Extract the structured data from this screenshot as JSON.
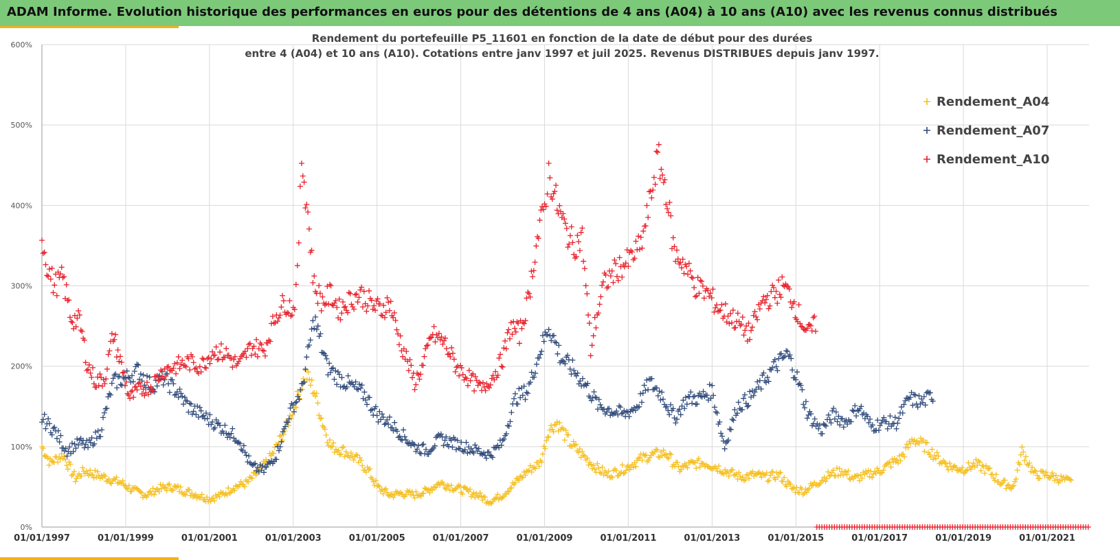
{
  "banner": {
    "title": "ADAM Informe. Evolution historique des performances en euros pour des détentions de 4 ans (A04) à 10 ans (A10) avec les revenus connus distribués"
  },
  "colors": {
    "banner_bg": "#7dc97a",
    "accent": "#f2b21b",
    "A04": "#f5bf1f",
    "A07": "#2f4a7a",
    "A10": "#e8202a",
    "grid": "#d9d9d9"
  },
  "chart_data": {
    "type": "scatter",
    "marker": "plus",
    "title_lines": [
      "Rendement du portefeuille P5_11601 en fonction de la date de début pour des durées",
      "entre 4 (A04) et 10 ans (A10). Cotations entre janv 1997 et juil 2025. Revenus DISTRIBUES depuis janv 1997."
    ],
    "x_range": [
      1997.0,
      2022.0
    ],
    "ylim": [
      0,
      600
    ],
    "y_ticks": [
      "0%",
      "100%",
      "200%",
      "300%",
      "400%",
      "500%",
      "600%"
    ],
    "x_ticks": [
      "01/01/1997",
      "01/01/1999",
      "01/01/2001",
      "01/01/2003",
      "01/01/2005",
      "01/01/2007",
      "01/01/2009",
      "01/01/2011",
      "01/01/2013",
      "01/01/2015",
      "01/01/2017",
      "01/01/2019",
      "01/01/2021"
    ],
    "grid": true,
    "legend_position": "top-right",
    "series": [
      {
        "name": "Rendement_A04",
        "color": "#f5bf1f",
        "x": [
          1997.0,
          1997.2,
          1997.5,
          1997.8,
          1998.0,
          1998.3,
          1998.6,
          1998.9,
          1999.2,
          1999.5,
          1999.8,
          2000.1,
          2000.4,
          2000.7,
          2001.0,
          2001.3,
          2001.6,
          2001.9,
          2002.2,
          2002.5,
          2002.8,
          2003.1,
          2003.3,
          2003.5,
          2003.7,
          2003.9,
          2004.2,
          2004.5,
          2004.8,
          2005.0,
          2005.3,
          2005.6,
          2005.9,
          2006.2,
          2006.5,
          2006.8,
          2007.1,
          2007.4,
          2007.7,
          2008.0,
          2008.3,
          2008.6,
          2008.9,
          2009.1,
          2009.3,
          2009.6,
          2009.9,
          2010.2,
          2010.5,
          2010.8,
          2011.0,
          2011.3,
          2011.6,
          2011.9,
          2012.2,
          2012.5,
          2012.8,
          2013.1,
          2013.4,
          2013.7,
          2014.0,
          2014.3,
          2014.6,
          2014.9,
          2015.2,
          2015.5,
          2015.8,
          2016.1,
          2016.4,
          2016.7,
          2017.0,
          2017.3,
          2017.5,
          2017.8,
          2018.1,
          2018.4,
          2018.7,
          2019.0,
          2019.3,
          2019.6,
          2019.9,
          2020.2,
          2020.4,
          2020.7,
          2021.0,
          2021.3,
          2021.6
        ],
        "y": [
          100,
          80,
          90,
          60,
          70,
          65,
          60,
          55,
          45,
          40,
          48,
          50,
          45,
          40,
          35,
          40,
          50,
          55,
          70,
          90,
          120,
          160,
          190,
          170,
          130,
          100,
          95,
          85,
          70,
          50,
          40,
          42,
          40,
          45,
          55,
          50,
          45,
          40,
          32,
          40,
          55,
          70,
          80,
          120,
          130,
          105,
          90,
          75,
          65,
          70,
          75,
          85,
          90,
          92,
          72,
          78,
          80,
          75,
          68,
          62,
          65,
          62,
          65,
          48,
          45,
          55,
          65,
          70,
          60,
          65,
          70,
          80,
          85,
          110,
          100,
          85,
          75,
          72,
          78,
          70,
          55,
          50,
          95,
          65,
          65,
          60,
          55
        ]
      },
      {
        "name": "Rendement_A07",
        "color": "#2f4a7a",
        "x": [
          1997.0,
          1997.3,
          1997.6,
          1997.9,
          1998.1,
          1998.4,
          1998.7,
          1999.0,
          1999.3,
          1999.6,
          1999.9,
          2000.2,
          2000.5,
          2000.8,
          2001.1,
          2001.4,
          2001.7,
          2002.0,
          2002.3,
          2002.6,
          2002.9,
          2003.2,
          2003.5,
          2003.8,
          2004.1,
          2004.4,
          2004.7,
          2005.0,
          2005.3,
          2005.6,
          2005.9,
          2006.2,
          2006.5,
          2006.8,
          2007.1,
          2007.4,
          2007.7,
          2008.0,
          2008.3,
          2008.6,
          2008.9,
          2009.1,
          2009.4,
          2009.7,
          2010.0,
          2010.3,
          2010.6,
          2010.9,
          2011.2,
          2011.5,
          2011.8,
          2012.1,
          2012.4,
          2012.7,
          2013.0,
          2013.3,
          2013.6,
          2013.9,
          2014.2,
          2014.5,
          2014.8,
          2015.0,
          2015.3,
          2015.6,
          2015.9,
          2016.2,
          2016.5,
          2016.8,
          2017.1,
          2017.4,
          2017.7,
          2018.0,
          2018.3
        ],
        "y": [
          135,
          120,
          95,
          105,
          100,
          120,
          180,
          185,
          195,
          175,
          185,
          170,
          150,
          140,
          130,
          120,
          110,
          75,
          70,
          90,
          140,
          170,
          260,
          200,
          185,
          175,
          165,
          140,
          130,
          115,
          100,
          95,
          110,
          105,
          100,
          95,
          90,
          105,
          160,
          170,
          220,
          250,
          210,
          195,
          175,
          150,
          145,
          140,
          150,
          180,
          165,
          135,
          160,
          160,
          170,
          100,
          150,
          160,
          180,
          200,
          215,
          190,
          140,
          120,
          140,
          130,
          150,
          125,
          130,
          130,
          160,
          155,
          165
        ]
      },
      {
        "name": "Rendement_A10",
        "color": "#e8202a",
        "x": [
          1997.0,
          1997.15,
          1997.3,
          1997.5,
          1997.7,
          1997.9,
          1998.1,
          1998.3,
          1998.5,
          1998.7,
          1998.9,
          1999.1,
          1999.3,
          1999.6,
          1999.9,
          2000.2,
          2000.5,
          2000.8,
          2001.1,
          2001.4,
          2001.7,
          2002.0,
          2002.3,
          2002.6,
          2002.8,
          2003.0,
          2003.1,
          2003.2,
          2003.35,
          2003.5,
          2003.7,
          2003.9,
          2004.1,
          2004.3,
          2004.6,
          2004.9,
          2005.1,
          2005.3,
          2005.5,
          2005.7,
          2005.9,
          2006.1,
          2006.3,
          2006.6,
          2006.9,
          2007.2,
          2007.5,
          2007.8,
          2008.0,
          2008.2,
          2008.4,
          2008.6,
          2008.8,
          2009.0,
          2009.1,
          2009.3,
          2009.5,
          2009.7,
          2009.9,
          2010.1,
          2010.2,
          2010.4,
          2010.7,
          2011.0,
          2011.3,
          2011.5,
          2011.7,
          2011.9,
          2012.1,
          2012.3,
          2012.6,
          2012.9,
          2013.2,
          2013.5,
          2013.7,
          2013.9,
          2014.2,
          2014.5,
          2014.7,
          2014.9,
          2015.1,
          2015.3,
          2015.5
        ],
        "y": [
          360,
          320,
          300,
          310,
          260,
          255,
          200,
          180,
          185,
          240,
          200,
          160,
          170,
          175,
          195,
          200,
          205,
          200,
          220,
          215,
          200,
          225,
          220,
          265,
          280,
          270,
          310,
          460,
          390,
          300,
          280,
          290,
          270,
          280,
          290,
          275,
          270,
          280,
          240,
          210,
          180,
          200,
          240,
          230,
          200,
          185,
          170,
          190,
          210,
          250,
          240,
          280,
          350,
          400,
          440,
          400,
          370,
          350,
          360,
          220,
          250,
          300,
          320,
          330,
          350,
          400,
          460,
          420,
          340,
          330,
          300,
          290,
          270,
          260,
          250,
          240,
          280,
          290,
          300,
          285,
          260,
          240,
          255
        ]
      }
    ],
    "baseline_segment": {
      "series": "Rendement_A10",
      "x_start": 2015.5,
      "x_end": 2022.0,
      "y": 0
    }
  }
}
